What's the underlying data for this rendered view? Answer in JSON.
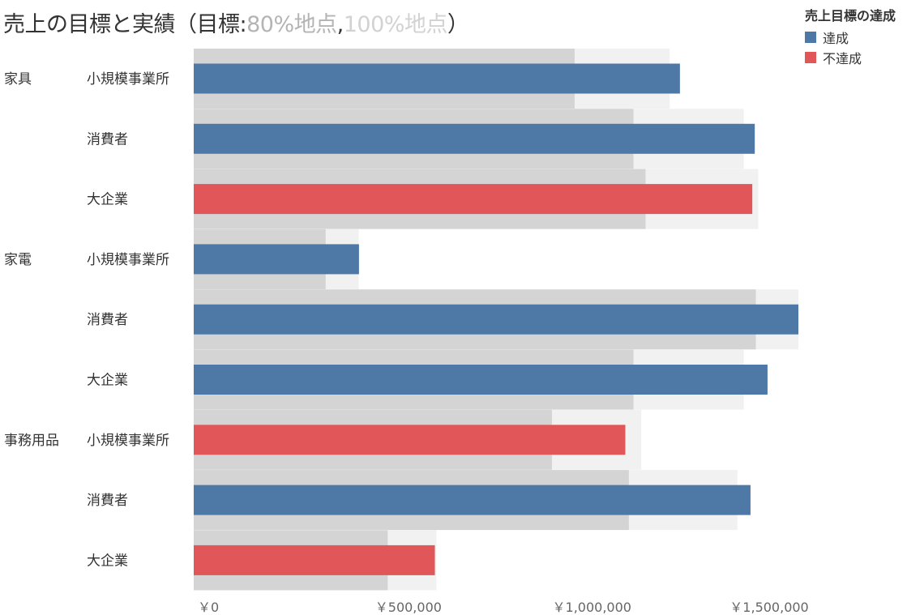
{
  "title": {
    "main": "売上の目標と実績",
    "open": "（目標:",
    "p80": "80%地点",
    "comma": ",",
    "p100": "100%地点",
    "close": "）"
  },
  "legend": {
    "title": "売上目標の達成",
    "items": [
      {
        "label": "達成",
        "color": "#4e79a7"
      },
      {
        "label": "不達成",
        "color": "#e15759"
      }
    ]
  },
  "chart_data": {
    "type": "bar",
    "orientation": "horizontal",
    "categories": [
      {
        "category": "家具",
        "segment": "小規模事業所",
        "sales": 1371000,
        "target_80": 1074000,
        "target_100": 1342000,
        "achieved": true
      },
      {
        "category": "",
        "segment": "消費者",
        "sales": 1582000,
        "target_80": 1240000,
        "target_100": 1551000,
        "achieved": true
      },
      {
        "category": "",
        "segment": "大企業",
        "sales": 1575000,
        "target_80": 1274000,
        "target_100": 1592000,
        "achieved": false
      },
      {
        "category": "家電",
        "segment": "小規模事業所",
        "sales": 466000,
        "target_80": 372000,
        "target_100": 465000,
        "achieved": true
      },
      {
        "category": "",
        "segment": "消費者",
        "sales": 1705000,
        "target_80": 1585000,
        "target_100": 1705000,
        "achieved": true
      },
      {
        "category": "",
        "segment": "大企業",
        "sales": 1618000,
        "target_80": 1240000,
        "target_100": 1551000,
        "achieved": true
      },
      {
        "category": "事務用品",
        "segment": "小規模事業所",
        "sales": 1217000,
        "target_80": 1010000,
        "target_100": 1262000,
        "achieved": false
      },
      {
        "category": "",
        "segment": "消費者",
        "sales": 1570000,
        "target_80": 1227000,
        "target_100": 1533000,
        "achieved": true
      },
      {
        "category": "",
        "segment": "大企業",
        "sales": 680000,
        "target_80": 547000,
        "target_100": 684000,
        "achieved": false
      }
    ],
    "x_ticks": [
      {
        "value": 0,
        "label": "￥0"
      },
      {
        "value": 500000,
        "label": "￥500,000"
      },
      {
        "value": 1000000,
        "label": "￥1,000,000"
      },
      {
        "value": 1500000,
        "label": "￥1,500,000"
      }
    ],
    "xlim": [
      0,
      1705000
    ],
    "colors": {
      "achieved": "#4e79a7",
      "not_achieved": "#e15759",
      "band_80": "#d4d4d4",
      "band_100": "#f1f1f1"
    }
  }
}
